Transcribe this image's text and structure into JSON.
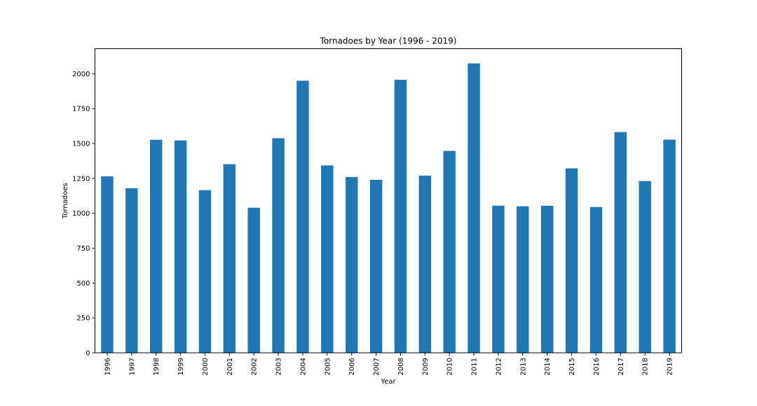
{
  "chart_data": {
    "type": "bar",
    "title": "Tornadoes by Year (1996 - 2019)",
    "xlabel": "Year",
    "ylabel": "Tornadoes",
    "categories": [
      "1996",
      "1997",
      "1998",
      "1999",
      "2000",
      "2001",
      "2002",
      "2003",
      "2004",
      "2005",
      "2006",
      "2007",
      "2008",
      "2009",
      "2010",
      "2011",
      "2012",
      "2013",
      "2014",
      "2015",
      "2016",
      "2017",
      "2018",
      "2019"
    ],
    "values": [
      1265,
      1180,
      1527,
      1522,
      1166,
      1352,
      1040,
      1538,
      1950,
      1343,
      1260,
      1240,
      1957,
      1270,
      1447,
      2074,
      1055,
      1050,
      1054,
      1322,
      1045,
      1582,
      1231,
      1528
    ],
    "ylim": [
      0,
      2180
    ],
    "yticks": [
      0,
      250,
      500,
      750,
      1000,
      1250,
      1500,
      1750,
      2000
    ],
    "grid": false,
    "legend": "none",
    "bar_color": "#1f77b4"
  }
}
